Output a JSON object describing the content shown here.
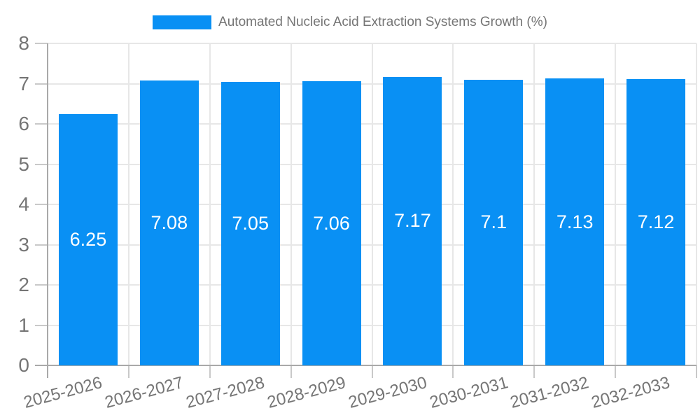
{
  "legend": {
    "label": "Automated Nucleic Acid Extraction Systems Growth (%)"
  },
  "chart_data": {
    "type": "bar",
    "title": "Automated Nucleic Acid Extraction Systems Growth (%)",
    "categories": [
      "2025-2026",
      "2026-2027",
      "2027-2028",
      "2028-2029",
      "2029-2030",
      "2030-2031",
      "2031-2032",
      "2032-2033"
    ],
    "values": [
      6.25,
      7.08,
      7.05,
      7.06,
      7.17,
      7.1,
      7.13,
      7.12
    ],
    "value_labels": [
      "6.25",
      "7.08",
      "7.05",
      "7.06",
      "7.17",
      "7.1",
      "7.13",
      "7.12"
    ],
    "xlabel": "",
    "ylabel": "",
    "ylim": [
      0,
      8
    ],
    "y_ticks": [
      0,
      1,
      2,
      3,
      4,
      5,
      6,
      7,
      8
    ],
    "grid": true,
    "legend_position": "top",
    "bar_label_position": "center",
    "colors": {
      "bar": "#0990f4",
      "bar_label": "#ffffff",
      "axis_text": "#757575",
      "grid_line": "#e7e7e7",
      "axis_line": "#a9a9a9",
      "tick_line": "#c9c9c9",
      "background": "#ffffff"
    }
  }
}
